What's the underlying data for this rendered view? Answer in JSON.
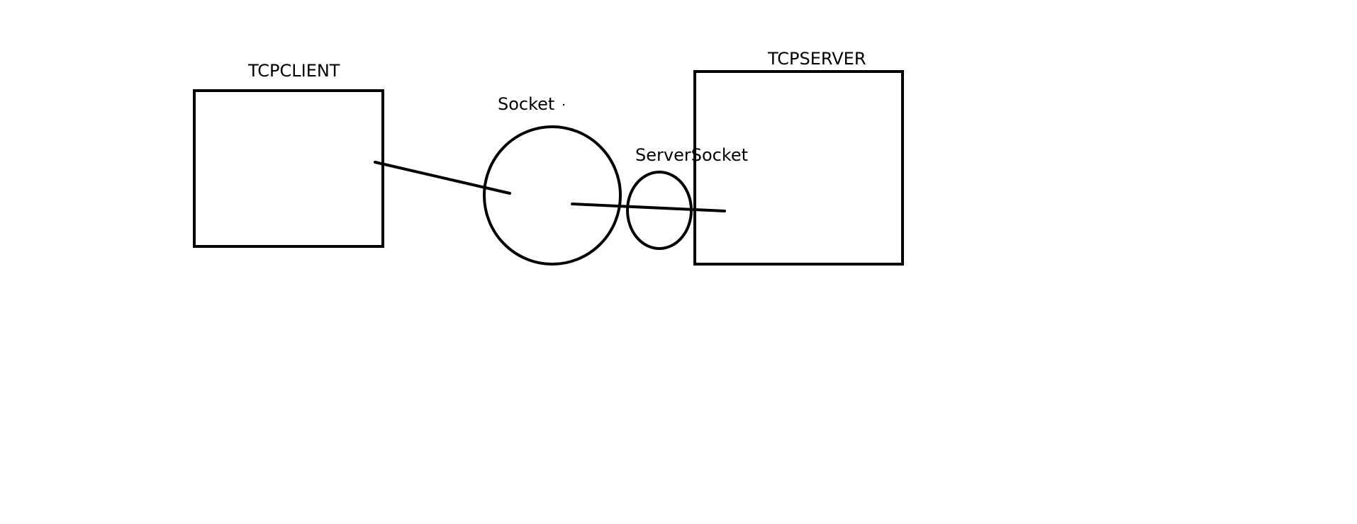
{
  "diagram": {
    "labels": {
      "client": "TCPCLIENT",
      "socket": "Socket",
      "server_socket": "ServerSocket",
      "server": "TCPSERVER"
    },
    "stroke_color": "#000000",
    "background_color": "#ffffff"
  }
}
